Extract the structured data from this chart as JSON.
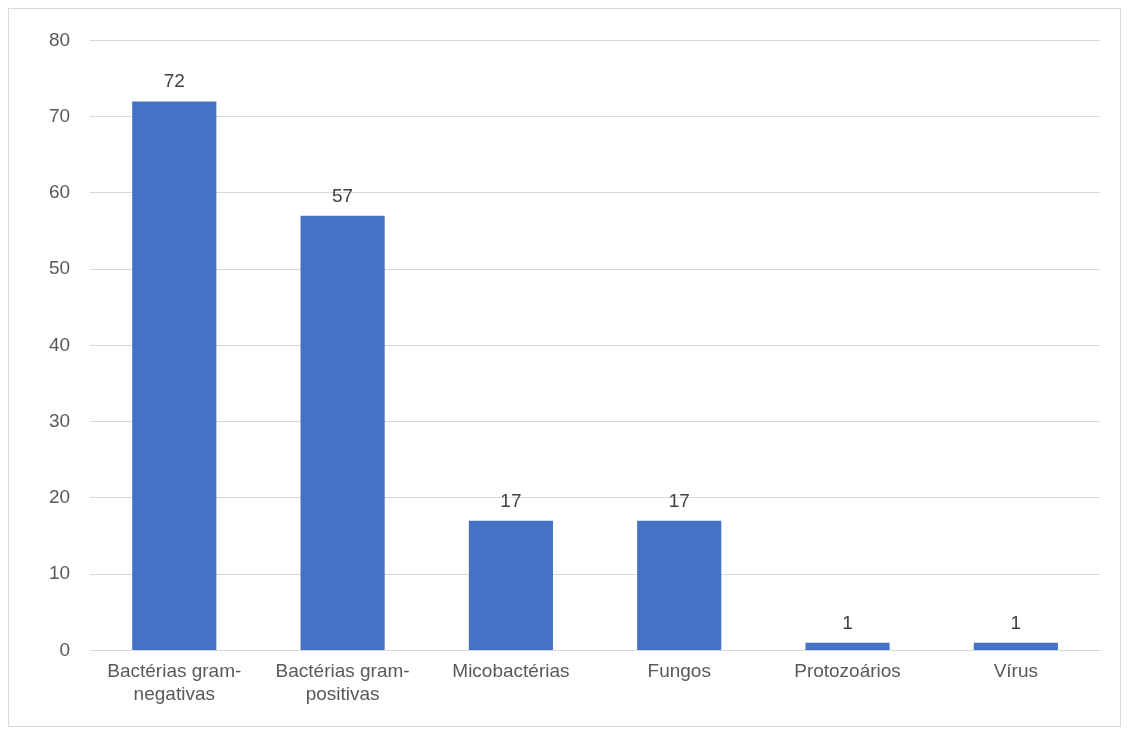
{
  "chart_data": {
    "type": "bar",
    "categories": [
      "Bactérias gram-negativas",
      "Bactérias gram-positivas",
      "Micobactérias",
      "Fungos",
      "Protozoários",
      "Vírus"
    ],
    "values": [
      72,
      57,
      17,
      17,
      1,
      1
    ],
    "color": "#4472c4",
    "ylim": [
      0,
      80
    ],
    "yticks": [
      0,
      10,
      20,
      30,
      40,
      50,
      60,
      70,
      80
    ],
    "grid": "y",
    "data_labels": true
  }
}
